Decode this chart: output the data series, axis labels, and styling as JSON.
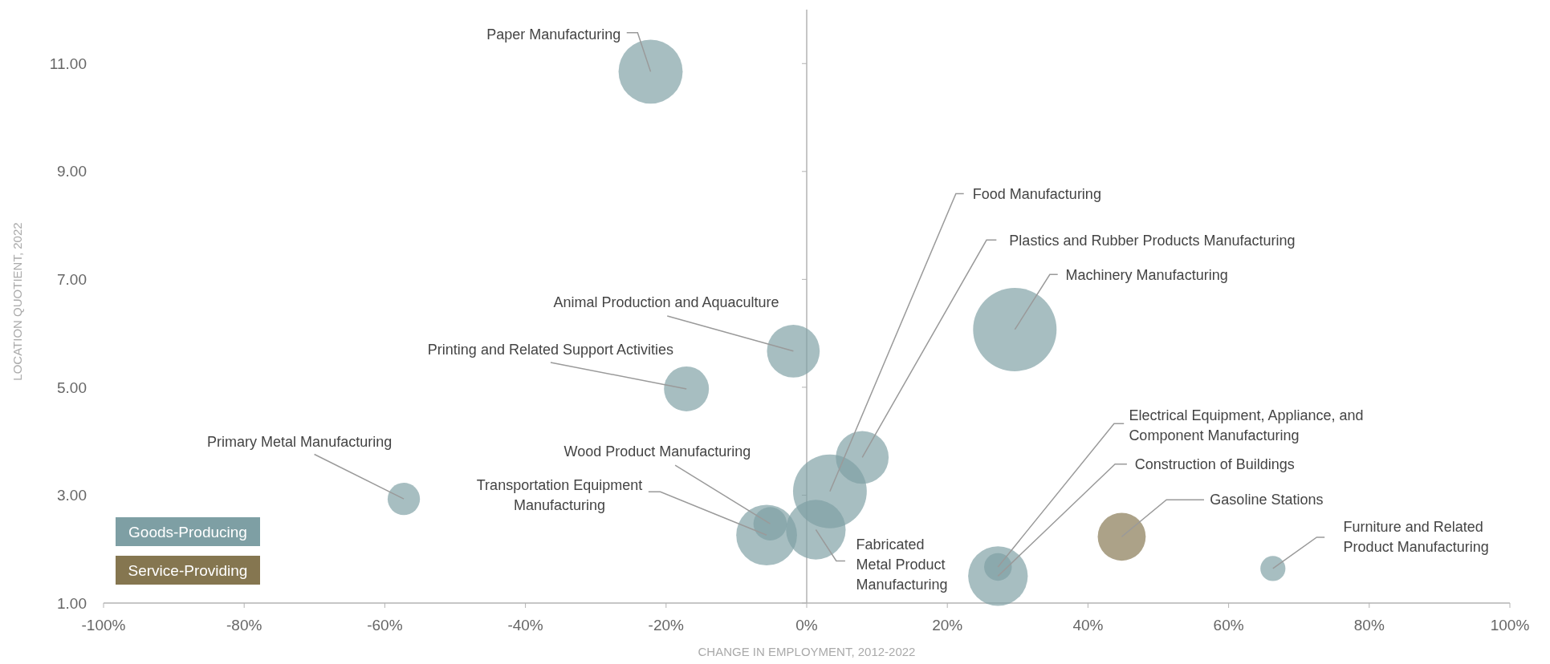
{
  "chart_data": {
    "type": "bubble",
    "xlabel": "CHANGE IN EMPLOYMENT, 2012-2022",
    "ylabel": "LOCATION QUOTIENT, 2022",
    "xlim": [
      -100,
      100
    ],
    "ylim": [
      1,
      12
    ],
    "xticks": [
      {
        "value": -100,
        "label": "-100%"
      },
      {
        "value": -80,
        "label": "-80%"
      },
      {
        "value": -60,
        "label": "-60%"
      },
      {
        "value": -40,
        "label": "-40%"
      },
      {
        "value": -20,
        "label": "-20%"
      },
      {
        "value": 0,
        "label": "0%"
      },
      {
        "value": 20,
        "label": "20%"
      },
      {
        "value": 40,
        "label": "40%"
      },
      {
        "value": 60,
        "label": "60%"
      },
      {
        "value": 80,
        "label": "80%"
      },
      {
        "value": 100,
        "label": "100%"
      }
    ],
    "yticks": [
      {
        "value": 1,
        "label": "1.00"
      },
      {
        "value": 3,
        "label": "3.00"
      },
      {
        "value": 5,
        "label": "5.00"
      },
      {
        "value": 7,
        "label": "7.00"
      },
      {
        "value": 9,
        "label": "9.00"
      },
      {
        "value": 11,
        "label": "11.00"
      }
    ],
    "legend": "bottom left",
    "series": [
      {
        "name": "Goods-Producing",
        "color": "#7e9fa4",
        "x": [
          -22.2,
          -1.9,
          -17.1,
          -57.3,
          -5.7,
          -5.2,
          1.3,
          3.3,
          7.9,
          29.6,
          27.2,
          27.2,
          66.3
        ],
        "values": [
          10.85,
          5.67,
          4.97,
          2.93,
          2.26,
          2.47,
          2.36,
          3.07,
          3.7,
          6.07,
          1.5,
          1.67,
          1.64
        ],
        "sizes": [
          0.59,
          0.4,
          0.29,
          0.15,
          0.53,
          0.16,
          0.51,
          0.78,
          0.4,
          1,
          0.51,
          0.11,
          0.09
        ]
      },
      {
        "name": "Service-Providing",
        "color": "#857650",
        "x": [
          44.8
        ],
        "values": [
          2.23
        ],
        "sizes": [
          0.33
        ]
      }
    ],
    "annotations": [
      {
        "text": "Paper Manufacturing",
        "x": -22.2,
        "y": 10.85
      },
      {
        "text": "Animal Production and Aquaculture",
        "x": -1.9,
        "y": 5.67
      },
      {
        "text": "Printing and Related Support Activities",
        "x": -17.1,
        "y": 4.97
      },
      {
        "text": "Primary Metal Manufacturing",
        "x": -57.3,
        "y": 2.93
      },
      {
        "text": "Wood Product Manufacturing",
        "x": -5.2,
        "y": 2.47
      },
      {
        "text": "Transportation Equipment\nManufacturing",
        "x": -5.7,
        "y": 2.26
      },
      {
        "text": "Fabricated\nMetal Product\nManufacturing",
        "x": 1.3,
        "y": 2.36
      },
      {
        "text": "Food Manufacturing",
        "x": 3.3,
        "y": 3.07
      },
      {
        "text": "Plastics and Rubber Products Manufacturing",
        "x": 7.9,
        "y": 3.7
      },
      {
        "text": "Machinery Manufacturing",
        "x": 29.6,
        "y": 6.07
      },
      {
        "text": "Electrical Equipment, Appliance, and\nComponent Manufacturing",
        "x": 27.2,
        "y": 1.67
      },
      {
        "text": "Construction of Buildings",
        "x": 27.2,
        "y": 1.5
      },
      {
        "text": "Gasoline Stations",
        "x": 44.8,
        "y": 2.23
      },
      {
        "text": "Furniture and Related\nProduct Manufacturing",
        "x": 66.3,
        "y": 1.64
      }
    ]
  }
}
